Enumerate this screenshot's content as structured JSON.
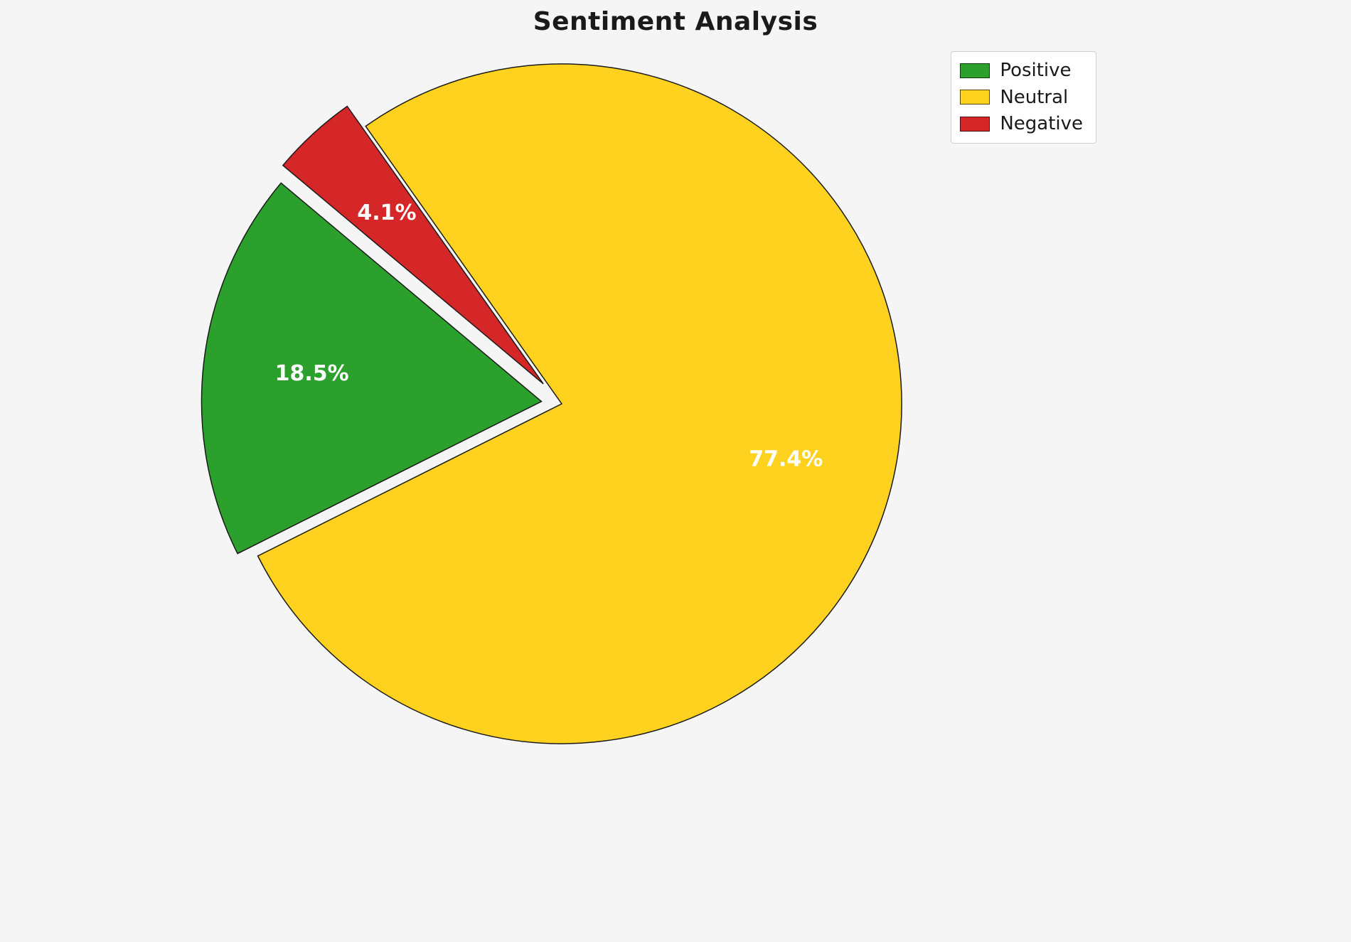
{
  "chart_data": {
    "type": "pie",
    "title": "Sentiment Analysis",
    "categories": [
      "Positive",
      "Neutral",
      "Negative"
    ],
    "values": [
      18.5,
      77.4,
      4.1
    ],
    "slices": [
      {
        "label": "Positive",
        "value": 18.5,
        "pct_label": "18.5%",
        "color": "#2ca02c",
        "explode": 0.06
      },
      {
        "label": "Neutral",
        "value": 77.4,
        "pct_label": "77.4%",
        "color": "#ffd21f",
        "explode": 0
      },
      {
        "label": "Negative",
        "value": 4.1,
        "pct_label": "4.1%",
        "color": "#d62728",
        "explode": 0.08
      }
    ],
    "start_angle": 140,
    "direction": "counterclockwise",
    "pct_distance": 0.68,
    "legend_position": "upper right",
    "label_color": "#ffffff",
    "edge_color": "#1a1a1a",
    "background": "#f5f5f5"
  }
}
